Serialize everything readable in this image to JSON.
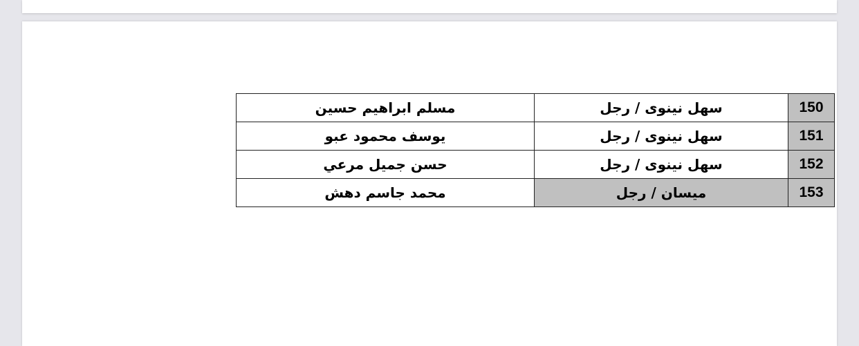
{
  "table": {
    "rows": [
      {
        "number": "150",
        "place": "سهل نينوى / رجل",
        "name": "مسلم ابراهيم حسين",
        "place_shaded": false
      },
      {
        "number": "151",
        "place": "سهل نينوى / رجل",
        "name": "يوسف محمود عبو",
        "place_shaded": false
      },
      {
        "number": "152",
        "place": "سهل نينوى / رجل",
        "name": "حسن جميل مرعي",
        "place_shaded": false
      },
      {
        "number": "153",
        "place": "ميسان / رجل",
        "name": "محمد جاسم دهش",
        "place_shaded": true
      }
    ],
    "shade_color": "#c0c0c0"
  }
}
